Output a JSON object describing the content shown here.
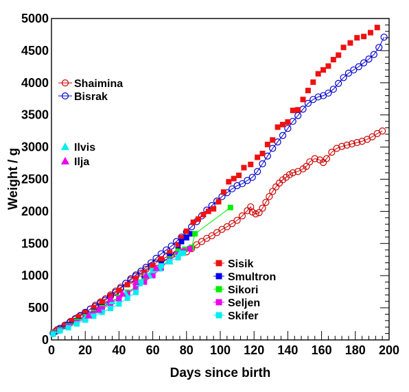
{
  "chart_data": {
    "type": "scatter",
    "xlabel": "Days since birth",
    "ylabel": "Weight / g",
    "xlim": [
      0,
      200
    ],
    "ylim": [
      0,
      5000
    ],
    "xticks": [
      0,
      20,
      40,
      60,
      80,
      100,
      120,
      140,
      160,
      180,
      200
    ],
    "yticks": [
      0,
      500,
      1000,
      1500,
      2000,
      2500,
      3000,
      3500,
      4000,
      4500,
      5000
    ],
    "grid": false,
    "legend_groups": [
      {
        "placement": "upper-left",
        "entries": [
          "Shaimina",
          "Bisrak"
        ]
      },
      {
        "placement": "middle-left",
        "entries": [
          "Ilvis",
          "Ilja"
        ]
      },
      {
        "placement": "center-bottom",
        "entries": [
          "Sisik",
          "Smultron",
          "Sikori",
          "Seljen",
          "Skifer"
        ]
      }
    ],
    "series": [
      {
        "name": "Shaimina",
        "color": "#cc0000",
        "marker": "open-circle",
        "line": true,
        "points": [
          [
            1,
            110
          ],
          [
            3,
            150
          ],
          [
            5,
            180
          ],
          [
            8,
            220
          ],
          [
            11,
            270
          ],
          [
            14,
            320
          ],
          [
            17,
            370
          ],
          [
            20,
            420
          ],
          [
            23,
            480
          ],
          [
            26,
            540
          ],
          [
            29,
            590
          ],
          [
            32,
            640
          ],
          [
            35,
            700
          ],
          [
            38,
            760
          ],
          [
            41,
            820
          ],
          [
            44,
            880
          ],
          [
            47,
            930
          ],
          [
            50,
            990
          ],
          [
            53,
            1040
          ],
          [
            56,
            1100
          ],
          [
            59,
            1150
          ],
          [
            62,
            1200
          ],
          [
            65,
            1250
          ],
          [
            68,
            1290
          ],
          [
            71,
            1320
          ],
          [
            74,
            1340
          ],
          [
            77,
            1360
          ],
          [
            80,
            1370
          ],
          [
            83,
            1420
          ],
          [
            86,
            1480
          ],
          [
            89,
            1530
          ],
          [
            92,
            1580
          ],
          [
            95,
            1620
          ],
          [
            98,
            1670
          ],
          [
            101,
            1720
          ],
          [
            104,
            1760
          ],
          [
            107,
            1810
          ],
          [
            110,
            1860
          ],
          [
            113,
            1930
          ],
          [
            116,
            2010
          ],
          [
            118,
            2070
          ],
          [
            119,
            1990
          ],
          [
            121,
            1960
          ],
          [
            123,
            1980
          ],
          [
            125,
            2050
          ],
          [
            127,
            2140
          ],
          [
            129,
            2230
          ],
          [
            131,
            2310
          ],
          [
            133,
            2380
          ],
          [
            135,
            2440
          ],
          [
            137,
            2490
          ],
          [
            139,
            2530
          ],
          [
            141,
            2570
          ],
          [
            143,
            2600
          ],
          [
            146,
            2620
          ],
          [
            149,
            2660
          ],
          [
            151,
            2700
          ],
          [
            153,
            2770
          ],
          [
            156,
            2820
          ],
          [
            159,
            2800
          ],
          [
            161,
            2760
          ],
          [
            163,
            2820
          ],
          [
            166,
            2920
          ],
          [
            169,
            2980
          ],
          [
            172,
            3010
          ],
          [
            175,
            3030
          ],
          [
            178,
            3050
          ],
          [
            181,
            3070
          ],
          [
            184,
            3090
          ],
          [
            187,
            3120
          ],
          [
            190,
            3160
          ],
          [
            193,
            3210
          ],
          [
            196,
            3250
          ]
        ]
      },
      {
        "name": "Bisrak",
        "color": "#0000cc",
        "marker": "open-circle",
        "line": true,
        "points": [
          [
            1,
            100
          ],
          [
            3,
            140
          ],
          [
            5,
            180
          ],
          [
            8,
            230
          ],
          [
            11,
            280
          ],
          [
            14,
            330
          ],
          [
            17,
            380
          ],
          [
            20,
            430
          ],
          [
            23,
            480
          ],
          [
            26,
            520
          ],
          [
            29,
            570
          ],
          [
            32,
            620
          ],
          [
            35,
            680
          ],
          [
            38,
            740
          ],
          [
            41,
            800
          ],
          [
            44,
            880
          ],
          [
            47,
            950
          ],
          [
            50,
            1010
          ],
          [
            53,
            1070
          ],
          [
            56,
            1130
          ],
          [
            59,
            1200
          ],
          [
            62,
            1270
          ],
          [
            65,
            1340
          ],
          [
            68,
            1400
          ],
          [
            71,
            1460
          ],
          [
            74,
            1530
          ],
          [
            77,
            1600
          ],
          [
            80,
            1680
          ],
          [
            83,
            1760
          ],
          [
            86,
            1840
          ],
          [
            89,
            1930
          ],
          [
            92,
            2020
          ],
          [
            95,
            2090
          ],
          [
            98,
            2160
          ],
          [
            101,
            2230
          ],
          [
            104,
            2290
          ],
          [
            107,
            2350
          ],
          [
            110,
            2400
          ],
          [
            113,
            2430
          ],
          [
            116,
            2480
          ],
          [
            119,
            2530
          ],
          [
            122,
            2620
          ],
          [
            125,
            2740
          ],
          [
            128,
            2860
          ],
          [
            131,
            2980
          ],
          [
            134,
            3080
          ],
          [
            137,
            3180
          ],
          [
            140,
            3290
          ],
          [
            143,
            3400
          ],
          [
            146,
            3490
          ],
          [
            149,
            3590
          ],
          [
            152,
            3680
          ],
          [
            155,
            3740
          ],
          [
            158,
            3780
          ],
          [
            161,
            3800
          ],
          [
            164,
            3840
          ],
          [
            167,
            3900
          ],
          [
            170,
            3990
          ],
          [
            173,
            4080
          ],
          [
            176,
            4150
          ],
          [
            179,
            4200
          ],
          [
            182,
            4250
          ],
          [
            185,
            4310
          ],
          [
            188,
            4370
          ],
          [
            191,
            4440
          ],
          [
            194,
            4550
          ],
          [
            197,
            4710
          ]
        ]
      },
      {
        "name": "Sisik",
        "color": "#ee1111",
        "marker": "filled-square",
        "line": false,
        "points": [
          [
            1,
            120
          ],
          [
            4,
            170
          ],
          [
            8,
            230
          ],
          [
            12,
            300
          ],
          [
            16,
            360
          ],
          [
            20,
            420
          ],
          [
            25,
            500
          ],
          [
            30,
            590
          ],
          [
            35,
            680
          ],
          [
            40,
            770
          ],
          [
            45,
            860
          ],
          [
            50,
            950
          ],
          [
            55,
            1050
          ],
          [
            60,
            1150
          ],
          [
            65,
            1260
          ],
          [
            70,
            1360
          ],
          [
            75,
            1480
          ],
          [
            77,
            1590
          ],
          [
            80,
            1690
          ],
          [
            84,
            1830
          ],
          [
            87,
            1880
          ],
          [
            90,
            1950
          ],
          [
            93,
            2000
          ],
          [
            96,
            2040
          ],
          [
            99,
            2150
          ],
          [
            102,
            2300
          ],
          [
            105,
            2460
          ],
          [
            108,
            2510
          ],
          [
            111,
            2560
          ],
          [
            114,
            2680
          ],
          [
            118,
            2730
          ],
          [
            122,
            2840
          ],
          [
            125,
            2900
          ],
          [
            128,
            3040
          ],
          [
            131,
            3110
          ],
          [
            134,
            3310
          ],
          [
            137,
            3350
          ],
          [
            140,
            3390
          ],
          [
            143,
            3570
          ],
          [
            146,
            3580
          ],
          [
            149,
            3740
          ],
          [
            152,
            3880
          ],
          [
            155,
            4010
          ],
          [
            158,
            4140
          ],
          [
            161,
            4200
          ],
          [
            164,
            4260
          ],
          [
            167,
            4360
          ],
          [
            170,
            4430
          ],
          [
            173,
            4550
          ],
          [
            177,
            4620
          ],
          [
            181,
            4700
          ],
          [
            185,
            4720
          ],
          [
            189,
            4780
          ],
          [
            193,
            4860
          ]
        ]
      },
      {
        "name": "Smultron",
        "color": "#0000ee",
        "marker": "filled-square",
        "line": true,
        "points": [
          [
            1,
            110
          ],
          [
            5,
            170
          ],
          [
            10,
            240
          ],
          [
            15,
            300
          ],
          [
            20,
            370
          ],
          [
            25,
            440
          ],
          [
            30,
            510
          ],
          [
            35,
            590
          ],
          [
            40,
            660
          ],
          [
            45,
            740
          ],
          [
            50,
            830
          ],
          [
            55,
            950
          ],
          [
            60,
            1060
          ],
          [
            65,
            1180
          ],
          [
            70,
            1300
          ],
          [
            75,
            1400
          ],
          [
            77,
            1530
          ],
          [
            80,
            1590
          ],
          [
            83,
            1650
          ]
        ]
      },
      {
        "name": "Sikori",
        "color": "#00ee00",
        "marker": "filled-square",
        "line": true,
        "points": [
          [
            1,
            110
          ],
          [
            5,
            160
          ],
          [
            10,
            220
          ],
          [
            15,
            290
          ],
          [
            20,
            360
          ],
          [
            25,
            430
          ],
          [
            30,
            500
          ],
          [
            35,
            580
          ],
          [
            40,
            660
          ],
          [
            45,
            740
          ],
          [
            50,
            830
          ],
          [
            55,
            920
          ],
          [
            60,
            1020
          ],
          [
            65,
            1140
          ],
          [
            70,
            1260
          ],
          [
            75,
            1380
          ],
          [
            79,
            1410
          ],
          [
            83,
            1440
          ],
          [
            85,
            1650
          ],
          [
            106,
            2060
          ]
        ]
      },
      {
        "name": "Seljen",
        "color": "#ee00ee",
        "marker": "filled-square",
        "line": true,
        "points": [
          [
            1,
            100
          ],
          [
            5,
            150
          ],
          [
            10,
            210
          ],
          [
            15,
            270
          ],
          [
            20,
            340
          ],
          [
            25,
            410
          ],
          [
            30,
            480
          ],
          [
            35,
            560
          ],
          [
            40,
            640
          ],
          [
            45,
            720
          ],
          [
            50,
            810
          ],
          [
            55,
            900
          ],
          [
            60,
            1000
          ],
          [
            65,
            1120
          ],
          [
            70,
            1240
          ],
          [
            75,
            1330
          ],
          [
            78,
            1380
          ],
          [
            82,
            1420
          ]
        ]
      },
      {
        "name": "Skifer",
        "color": "#00eeee",
        "marker": "filled-square",
        "line": true,
        "points": [
          [
            1,
            90
          ],
          [
            5,
            140
          ],
          [
            10,
            190
          ],
          [
            15,
            250
          ],
          [
            20,
            310
          ],
          [
            25,
            370
          ],
          [
            30,
            430
          ],
          [
            35,
            490
          ],
          [
            40,
            560
          ],
          [
            45,
            650
          ],
          [
            50,
            740
          ],
          [
            53,
            900
          ],
          [
            56,
            1000
          ],
          [
            60,
            1080
          ],
          [
            65,
            1150
          ],
          [
            70,
            1220
          ],
          [
            75,
            1280
          ],
          [
            78,
            1350
          ]
        ]
      },
      {
        "name": "Ilvis",
        "color": "#00eeee",
        "marker": "filled-triangle",
        "line": false,
        "points": [
          [
            20,
            340
          ],
          [
            28,
            460
          ],
          [
            36,
            600
          ],
          [
            44,
            720
          ],
          [
            52,
            880
          ],
          [
            58,
            1000
          ],
          [
            64,
            1110
          ],
          [
            70,
            1220
          ],
          [
            76,
            1350
          ]
        ]
      },
      {
        "name": "Ilja",
        "color": "#ee00ee",
        "marker": "filled-triangle",
        "line": false,
        "points": [
          [
            22,
            380
          ],
          [
            28,
            470
          ],
          [
            35,
            640
          ],
          [
            42,
            720
          ],
          [
            50,
            900
          ],
          [
            56,
            1000
          ],
          [
            62,
            1120
          ]
        ]
      }
    ]
  }
}
